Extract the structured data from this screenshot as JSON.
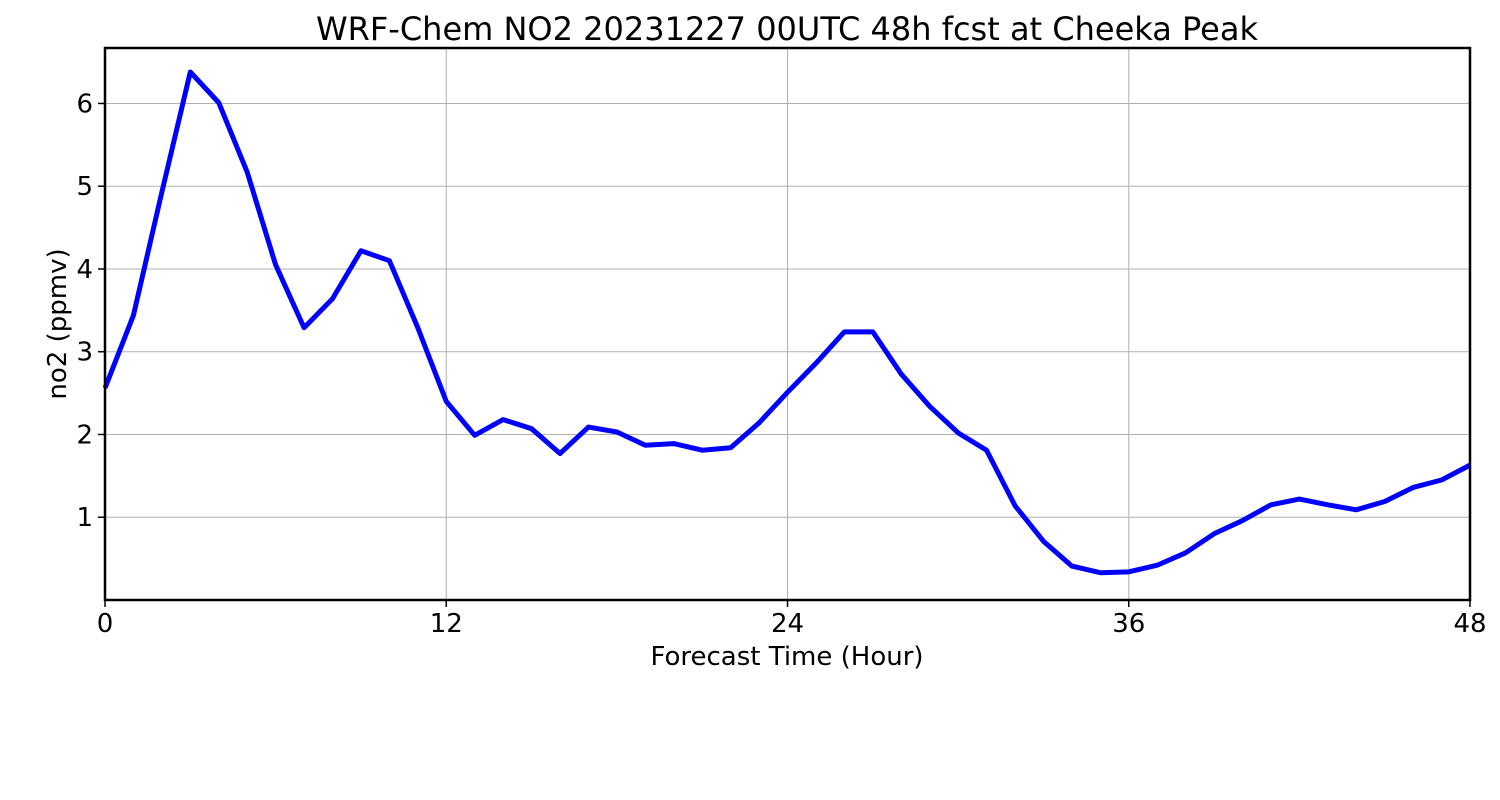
{
  "chart_data": {
    "type": "line",
    "title": "WRF-Chem NO2  20231227 00UTC 48h fcst at Cheeka Peak",
    "xlabel": "Forecast Time (Hour)",
    "ylabel": "no2  (ppmv)",
    "xlim": [
      0,
      48
    ],
    "ylim": [
      0,
      6.67
    ],
    "xticks": [
      0,
      12,
      24,
      36,
      48
    ],
    "yticks": [
      1,
      2,
      3,
      4,
      5,
      6
    ],
    "grid": true,
    "series": [
      {
        "color": "#0000ff",
        "x": [
          0,
          1,
          2,
          3,
          4,
          5,
          6,
          7,
          8,
          9,
          10,
          11,
          12,
          13,
          14,
          15,
          16,
          17,
          18,
          19,
          20,
          21,
          22,
          23,
          24,
          25,
          26,
          27,
          28,
          29,
          30,
          31,
          32,
          33,
          34,
          35,
          36,
          37,
          38,
          39,
          40,
          41,
          42,
          43,
          44,
          45,
          46,
          47,
          48
        ],
        "values": [
          2.56,
          3.44,
          4.93,
          6.38,
          6.01,
          5.17,
          4.05,
          3.29,
          3.64,
          4.22,
          4.1,
          3.29,
          2.4,
          1.99,
          2.18,
          2.07,
          1.77,
          2.09,
          2.03,
          1.87,
          1.89,
          1.81,
          1.84,
          2.14,
          2.51,
          2.86,
          3.24,
          3.24,
          2.73,
          2.34,
          2.02,
          1.81,
          1.14,
          0.71,
          0.41,
          0.33,
          0.34,
          0.42,
          0.57,
          0.8,
          0.96,
          1.15,
          1.22,
          1.15,
          1.09,
          1.19,
          1.36,
          1.45,
          1.63
        ]
      }
    ]
  }
}
